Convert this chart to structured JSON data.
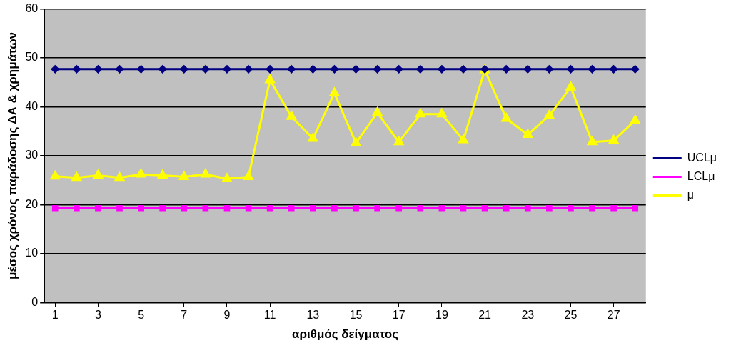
{
  "chart_data": {
    "type": "line",
    "xlabel": "αριθμός δείγματος",
    "ylabel": "μέσος χρόνος παράδοσης ΔΑ & χρημάτων",
    "x": [
      1,
      2,
      3,
      4,
      5,
      6,
      7,
      8,
      9,
      10,
      11,
      12,
      13,
      14,
      15,
      16,
      17,
      18,
      19,
      20,
      21,
      22,
      23,
      24,
      25,
      26,
      27,
      28
    ],
    "xlim": [
      0.5,
      28.5
    ],
    "xticks": [
      1,
      3,
      5,
      7,
      9,
      11,
      13,
      15,
      17,
      19,
      21,
      23,
      25,
      27
    ],
    "series": [
      {
        "name": "UCLμ",
        "color": "#000080",
        "marker": "diamond",
        "values": [
          47.7,
          47.7,
          47.7,
          47.7,
          47.7,
          47.7,
          47.7,
          47.7,
          47.7,
          47.7,
          47.7,
          47.7,
          47.7,
          47.7,
          47.7,
          47.7,
          47.7,
          47.7,
          47.7,
          47.7,
          47.7,
          47.7,
          47.7,
          47.7,
          47.7,
          47.7,
          47.7,
          47.7
        ]
      },
      {
        "name": "LCLμ",
        "color": "#ff00ff",
        "marker": "square",
        "values": [
          19.3,
          19.3,
          19.3,
          19.3,
          19.3,
          19.3,
          19.3,
          19.3,
          19.3,
          19.3,
          19.3,
          19.3,
          19.3,
          19.3,
          19.3,
          19.3,
          19.3,
          19.3,
          19.3,
          19.3,
          19.3,
          19.3,
          19.3,
          19.3,
          19.3,
          19.3,
          19.3,
          19.3
        ]
      },
      {
        "name": "μ",
        "color": "#ffff00",
        "marker": "triangle",
        "values": [
          25.8,
          25.5,
          26,
          25.5,
          26.2,
          26,
          25.7,
          26.2,
          25.3,
          25.7,
          45.5,
          38,
          33.5,
          42.8,
          32.6,
          38.8,
          32.8,
          38.5,
          38.5,
          33.2,
          47.5,
          37.6,
          34.3,
          38.2,
          44,
          32.8,
          33.1,
          37.2
        ]
      }
    ],
    "ylim": [
      0,
      60
    ],
    "yticks": [
      0,
      10,
      20,
      30,
      40,
      50,
      60
    ],
    "grid": "y",
    "legend": "right",
    "line_style": "solid"
  }
}
